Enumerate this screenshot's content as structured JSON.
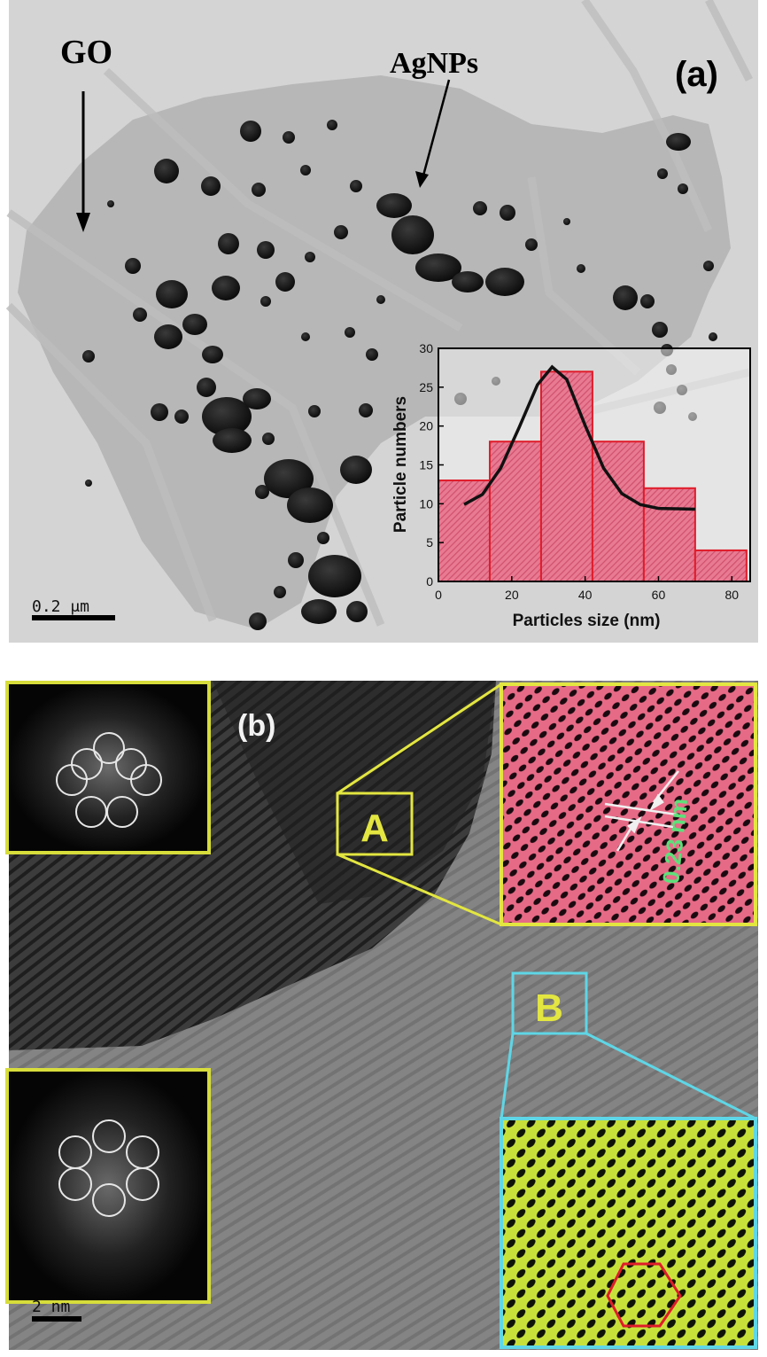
{
  "panel_a": {
    "label": "(a)",
    "go_label": "GO",
    "agnps_label": "AgNPs",
    "scale_bar": "0.2 μm"
  },
  "panel_b": {
    "label": "(b)",
    "region_a": "A",
    "region_b": "B",
    "lattice_spacing": "0.23 nm",
    "scale_bar": "2 nm"
  },
  "colors": {
    "highlight_a": "#e3e640",
    "highlight_b": "#5ed6e6",
    "hist_fill": "#e86a86",
    "hist_edge": "#e01c2a",
    "spacing_text": "#5ee07a"
  },
  "chart_data": {
    "type": "bar",
    "bin_edges": [
      0,
      14,
      28,
      42,
      56,
      70,
      84
    ],
    "values": [
      13,
      18,
      27,
      18,
      12,
      4
    ],
    "fit_curve": {
      "x": [
        7,
        12,
        17,
        22,
        27,
        31,
        35,
        40,
        45,
        50,
        55,
        60,
        65,
        70
      ],
      "y": [
        9.9,
        11.2,
        14.6,
        19.8,
        25.3,
        27.6,
        26.0,
        20.1,
        14.6,
        11.3,
        9.9,
        9.4,
        9.35,
        9.3
      ]
    },
    "xlabel": "Particles size (nm)",
    "ylabel": "Particle numbers",
    "xlim": [
      0,
      85
    ],
    "ylim": [
      0,
      30
    ],
    "xticks": [
      "0",
      "20",
      "40",
      "60",
      "80"
    ],
    "yticks": [
      "0",
      "5",
      "10",
      "15",
      "20",
      "25",
      "30"
    ]
  }
}
